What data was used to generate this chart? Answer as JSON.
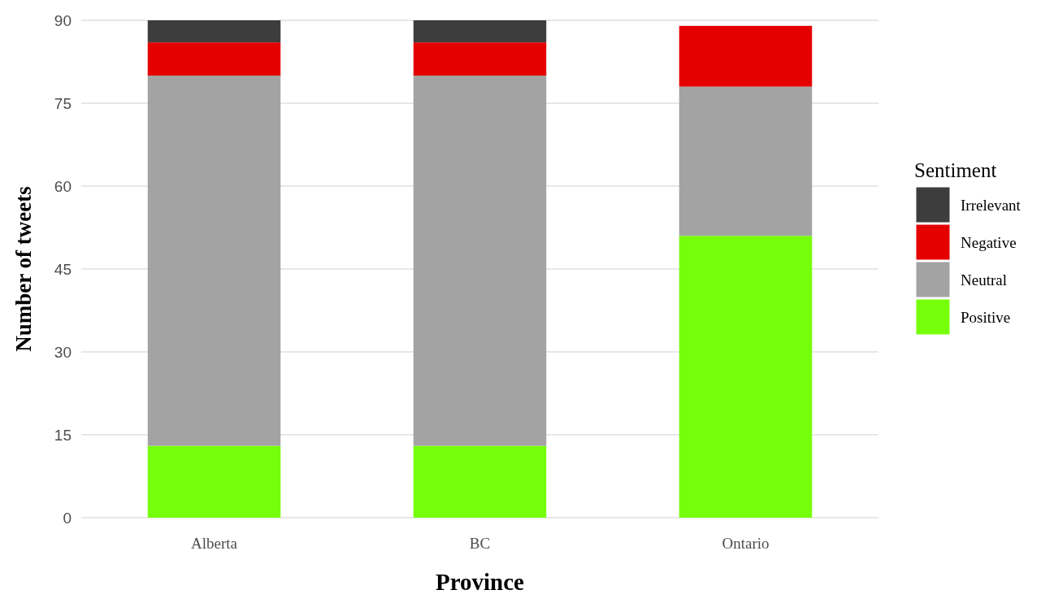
{
  "chart_data": {
    "type": "bar",
    "stacked": true,
    "xlabel": "Province",
    "ylabel": "Number of tweets",
    "legend_title": "Sentiment",
    "legend": "right",
    "categories": [
      "Alberta",
      "BC",
      "Ontario"
    ],
    "series": [
      {
        "name": "Positive",
        "color": "#76ff0a",
        "values": [
          13,
          13,
          51
        ]
      },
      {
        "name": "Neutral",
        "color": "#a3a3a3",
        "values": [
          67,
          67,
          27
        ]
      },
      {
        "name": "Negative",
        "color": "#e50000",
        "values": [
          6,
          6,
          11
        ]
      },
      {
        "name": "Irrelevant",
        "color": "#3d3d3d",
        "values": [
          4,
          4,
          null
        ]
      }
    ],
    "ylim": [
      0,
      90
    ],
    "yticks": [
      0,
      15,
      30,
      45,
      60,
      75,
      90
    ],
    "grid": "y"
  }
}
